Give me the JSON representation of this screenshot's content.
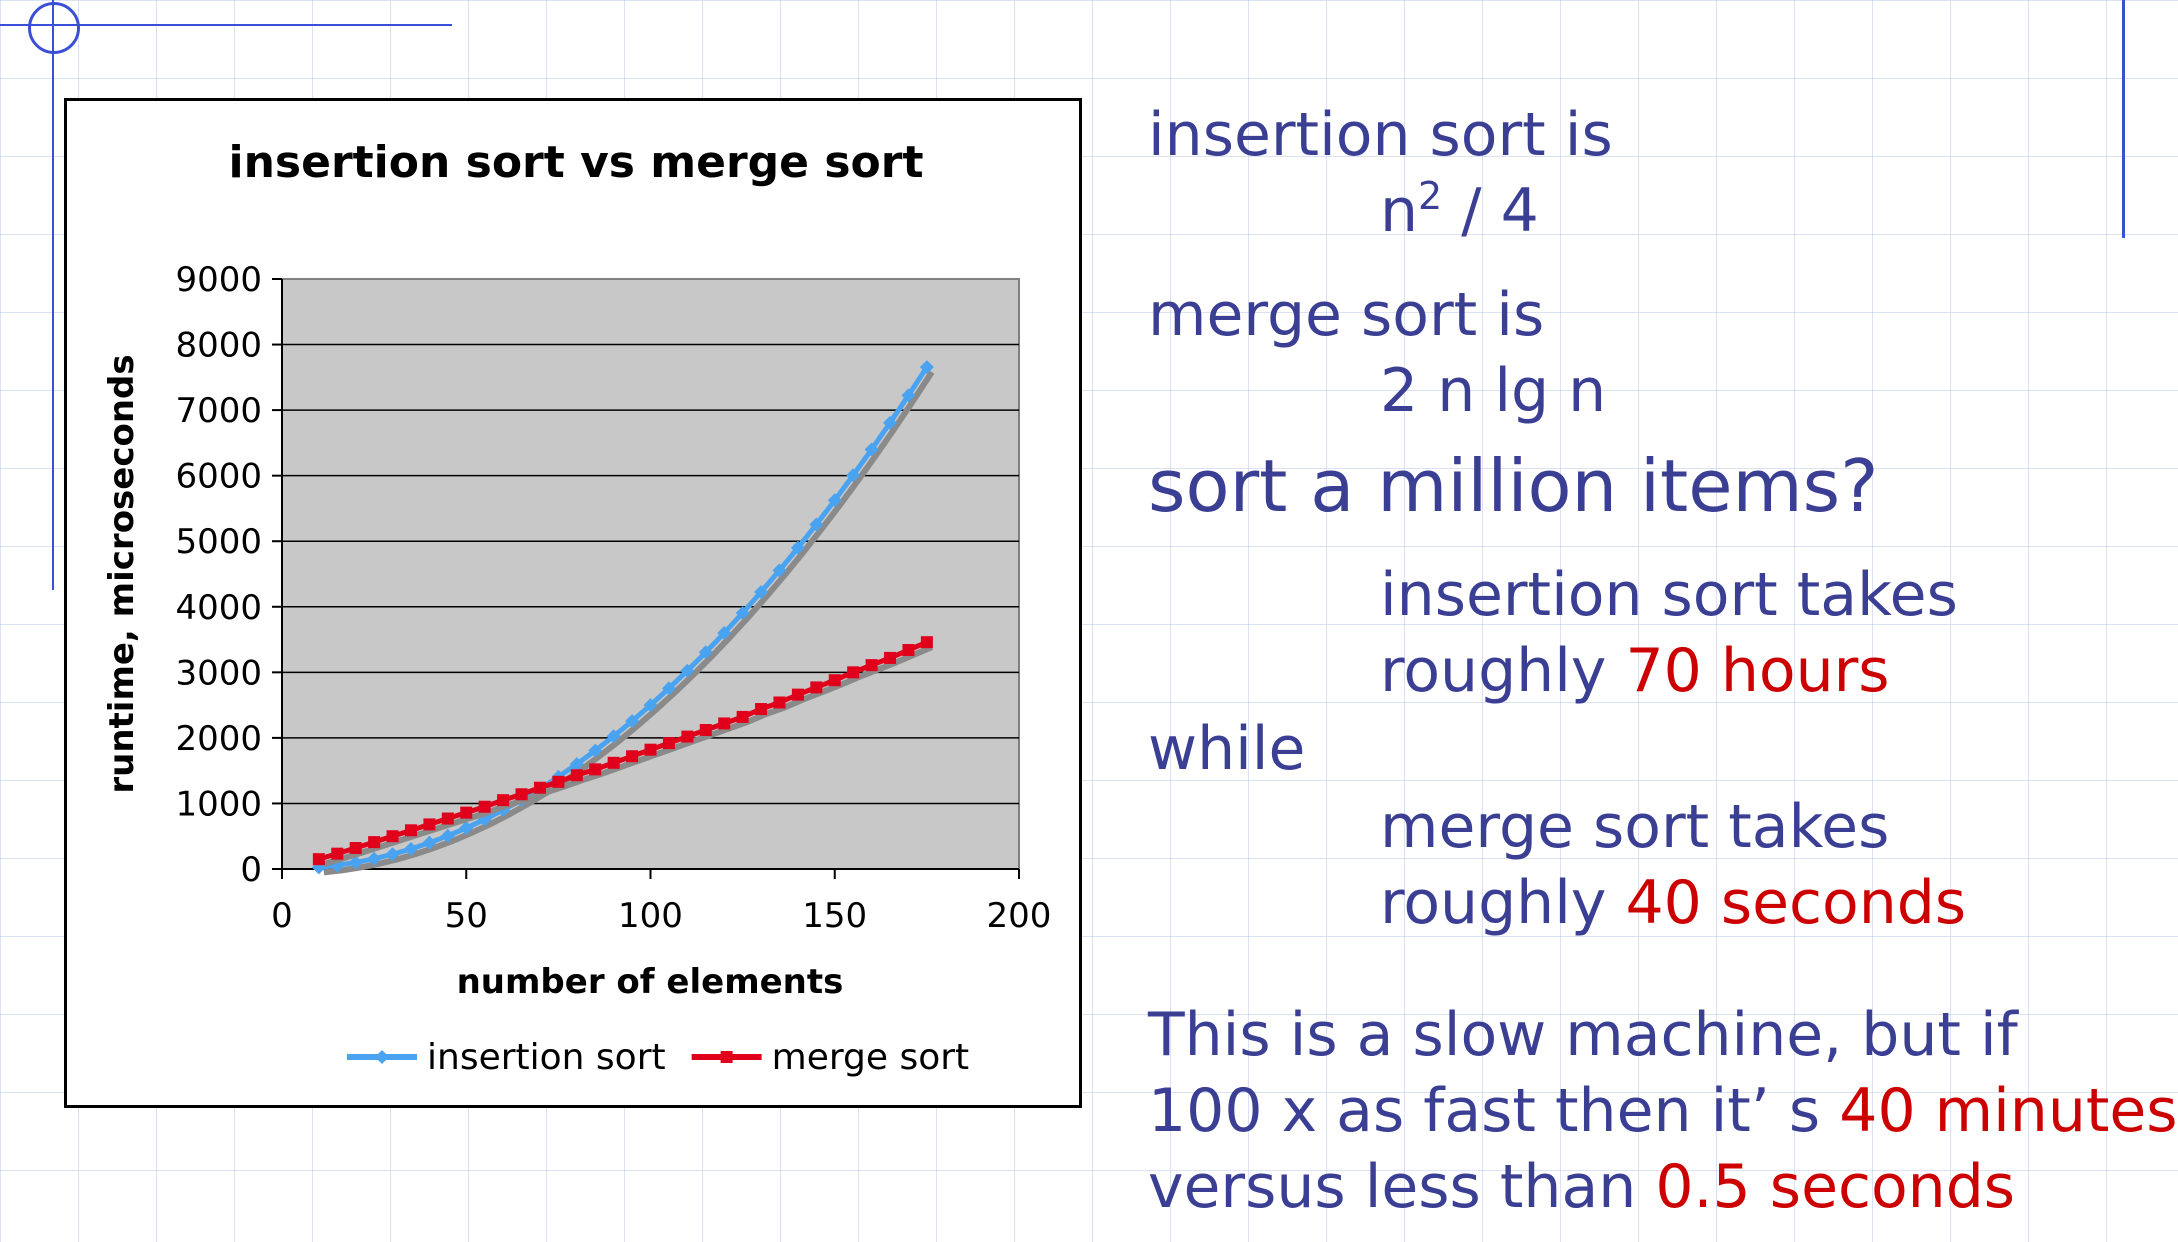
{
  "colors": {
    "deco_blue": "#3a4fd8",
    "text_blue": "#3a3f93",
    "highlight_red": "#cc0000",
    "insertion_series": "#4aa3f0",
    "merge_series": "#e0001b",
    "plot_background": "#c8c8c8"
  },
  "chart_data": {
    "type": "line",
    "title": "insertion sort vs merge sort",
    "xlabel": "number of elements",
    "ylabel": "runtime, microseconds",
    "xlim": [
      0,
      200
    ],
    "ylim": [
      0,
      9000
    ],
    "x_ticks": [
      "0",
      "50",
      "100",
      "150",
      "200"
    ],
    "y_ticks": [
      "0",
      "1000",
      "2000",
      "3000",
      "4000",
      "5000",
      "6000",
      "7000",
      "8000",
      "9000"
    ],
    "grid": "horizontal",
    "legend_position": "bottom",
    "x": [
      10,
      15,
      20,
      25,
      30,
      35,
      40,
      45,
      50,
      55,
      60,
      65,
      70,
      75,
      80,
      85,
      90,
      95,
      100,
      105,
      110,
      115,
      120,
      125,
      130,
      135,
      140,
      145,
      150,
      155,
      160,
      165,
      170,
      175
    ],
    "series": [
      {
        "name": "insertion sort",
        "values": [
          25,
          56,
          100,
          156,
          225,
          306,
          400,
          506,
          625,
          756,
          900,
          1056,
          1225,
          1406,
          1600,
          1806,
          2025,
          2256,
          2500,
          2756,
          3025,
          3306,
          3600,
          3906,
          4225,
          4556,
          4900,
          5256,
          5625,
          6006,
          6400,
          6806,
          7225,
          7656
        ]
      },
      {
        "name": "merge sort",
        "values": [
          150,
          234,
          320,
          410,
          500,
          590,
          680,
          770,
          860,
          950,
          1050,
          1140,
          1240,
          1330,
          1430,
          1520,
          1620,
          1720,
          1820,
          1920,
          2020,
          2120,
          2220,
          2320,
          2440,
          2540,
          2660,
          2770,
          2880,
          3000,
          3110,
          3220,
          3340,
          3460
        ]
      }
    ]
  },
  "text_panel": {
    "line1": "insertion sort is",
    "line2_main": "n",
    "line2_sup": "2",
    "line2_rest": " / 4",
    "line3": "merge sort is",
    "line4": "2 n lg n",
    "line5": "sort a million items?",
    "line6": "insertion sort takes",
    "line7_a": "roughly ",
    "line7_b": "70 hours",
    "line8": "while",
    "line9": "merge sort takes",
    "line10_a": "roughly ",
    "line10_b": "40 seconds",
    "line11": "This is a slow machine, but if",
    "line12_a": "100 x as fast then it’ s ",
    "line12_b": "40 minutes",
    "line13_a": "versus less than ",
    "line13_b": "0.5 seconds"
  }
}
